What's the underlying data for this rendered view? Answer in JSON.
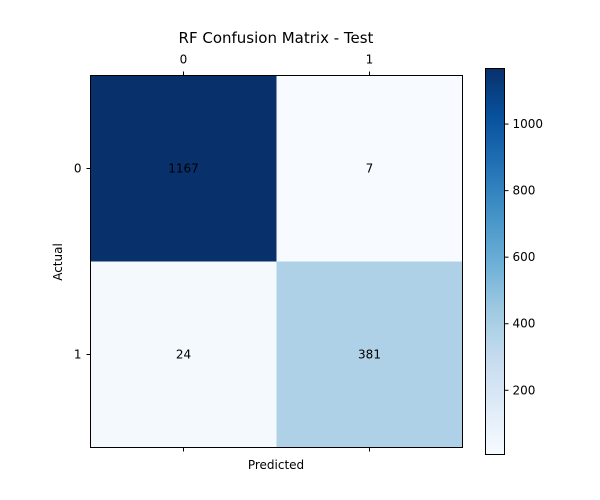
{
  "chart_data": {
    "type": "heatmap",
    "title": "RF Confusion Matrix - Test",
    "xlabel": "Predicted",
    "ylabel": "Actual",
    "x_categories": [
      "0",
      "1"
    ],
    "y_categories": [
      "0",
      "1"
    ],
    "values": [
      [
        1167,
        7
      ],
      [
        24,
        381
      ]
    ],
    "colormap": "Blues",
    "colorbar": {
      "ticks": [
        200,
        400,
        600,
        800,
        1000
      ],
      "tick_labels": [
        "200",
        "400",
        "600",
        "800",
        "1000"
      ],
      "range": [
        7,
        1167
      ]
    },
    "x_ticks_position": "top",
    "grid": false
  },
  "colors": {
    "low": "#f7fbff",
    "high": "#08306b"
  }
}
